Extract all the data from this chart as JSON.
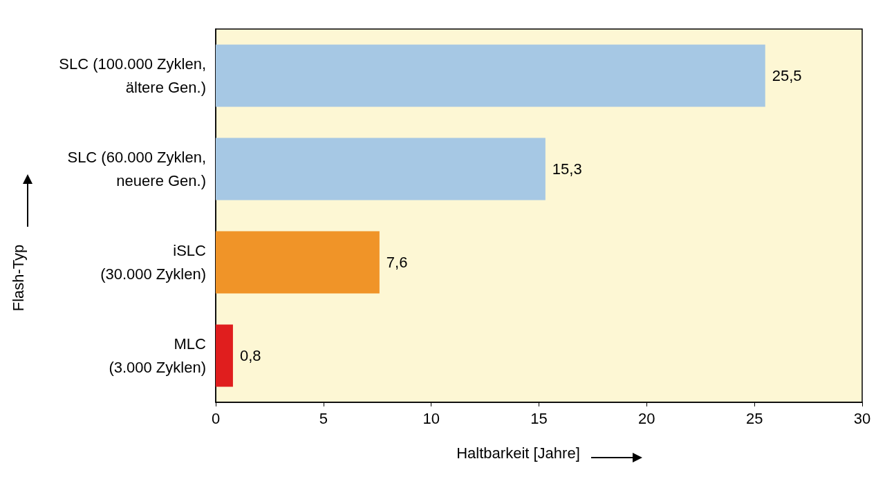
{
  "chart_data": {
    "type": "bar",
    "orientation": "horizontal",
    "categories": [
      "SLC (100.000 Zyklen,\nältere Gen.)",
      "SLC (60.000 Zyklen,\nneuere Gen.)",
      "iSLC\n(30.000 Zyklen)",
      "MLC\n(3.000 Zyklen)"
    ],
    "values": [
      25.5,
      15.3,
      7.6,
      0.8
    ],
    "value_labels": [
      "25,5",
      "15,3",
      "7,6",
      "0,8"
    ],
    "colors": [
      "#a6c8e4",
      "#a6c8e4",
      "#f09428",
      "#e01e1e"
    ],
    "xlim": [
      0,
      30
    ],
    "xticks": [
      0,
      5,
      10,
      15,
      20,
      25,
      30
    ],
    "xlabel": "Haltbarkeit [Jahre]",
    "ylabel": "Flash-Typ",
    "grid": false
  }
}
